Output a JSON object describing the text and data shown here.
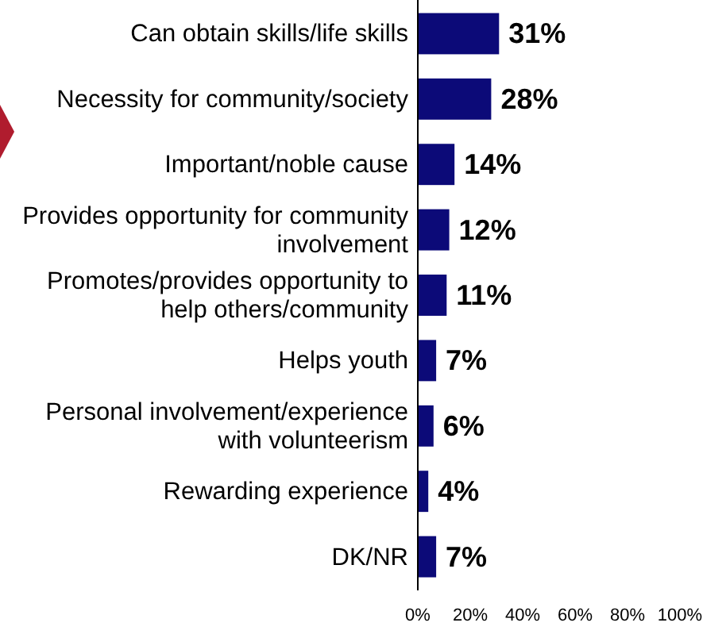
{
  "chart_data": {
    "type": "bar",
    "orientation": "horizontal",
    "categories": [
      "Can obtain skills/life skills",
      "Necessity for community/society",
      "Important/noble cause",
      "Provides opportunity for community involvement",
      "Promotes/provides opportunity to help others/community",
      "Helps youth",
      "Personal involvement/experience with volunteerism",
      "Rewarding experience",
      "DK/NR"
    ],
    "values": [
      31,
      28,
      14,
      12,
      11,
      7,
      6,
      4,
      7
    ],
    "value_labels": [
      "31%",
      "28%",
      "14%",
      "12%",
      "11%",
      "7%",
      "6%",
      "4%",
      "7%"
    ],
    "color": "#0c0a78",
    "xlim": [
      0,
      100
    ],
    "xticks": [
      {
        "value": 0,
        "label": "0%"
      },
      {
        "value": 20,
        "label": "20%"
      },
      {
        "value": 40,
        "label": "40%"
      },
      {
        "value": 60,
        "label": "60%"
      },
      {
        "value": 80,
        "label": "80%"
      },
      {
        "value": 100,
        "label": "100%"
      }
    ],
    "grid": false
  }
}
